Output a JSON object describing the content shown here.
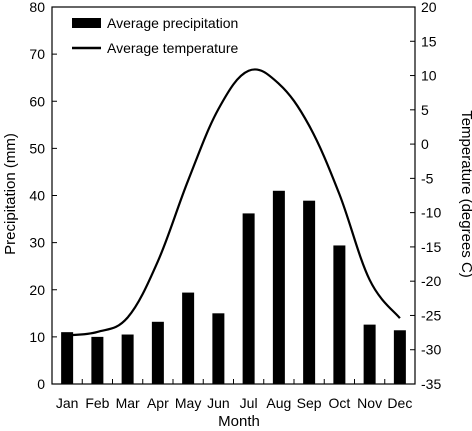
{
  "chart_data": {
    "type": "bar",
    "categories": [
      "Jan",
      "Feb",
      "Mar",
      "Apr",
      "May",
      "Jun",
      "Jul",
      "Aug",
      "Sep",
      "Oct",
      "Nov",
      "Dec"
    ],
    "series": [
      {
        "name": "Average precipitation",
        "kind": "bar",
        "axis": "left",
        "color": "#000000",
        "values": [
          11,
          10,
          10.5,
          13.2,
          19.4,
          15,
          36.2,
          41,
          38.9,
          29.4,
          12.6,
          11.4
        ]
      },
      {
        "name": "Average temperature",
        "kind": "line",
        "axis": "right",
        "color": "#000000",
        "values": [
          -27.9,
          -27.4,
          -25.3,
          -17.1,
          -5.3,
          5.1,
          10.7,
          8.8,
          2.7,
          -7.3,
          -19.8,
          -25.4
        ]
      }
    ],
    "xlabel": "Month",
    "ylabel_left": "Precipitation (mm)",
    "ylabel_right": "Temperature (degrees C)",
    "ylim_left": [
      0,
      80
    ],
    "ylim_right": [
      -35,
      20
    ],
    "yticks_left": [
      "0",
      "10",
      "20",
      "30",
      "40",
      "50",
      "60",
      "70",
      "80"
    ],
    "yticks_right": [
      "-35",
      "-30",
      "-25",
      "-20",
      "-15",
      "-10",
      "-5",
      "0",
      "5",
      "10",
      "15",
      "20"
    ],
    "grid": false,
    "legend": "top-left"
  }
}
